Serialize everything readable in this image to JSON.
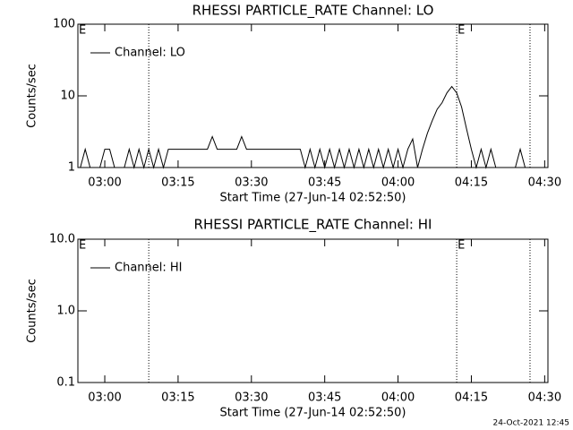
{
  "chart_data": [
    {
      "type": "line",
      "title": "RHESSI PARTICLE_RATE Channel: LO",
      "xlabel": "Start Time (27-Jun-14 02:52:50)",
      "ylabel": "Counts/sec",
      "log_y": true,
      "legend": "upper left",
      "xlim": [
        "02:54:30",
        "04:30:40"
      ],
      "xticks": [
        "03:00",
        "03:15",
        "03:30",
        "03:45",
        "04:00",
        "04:15",
        "04:30"
      ],
      "ylim": [
        1,
        100
      ],
      "yticks": [
        1,
        10,
        100
      ],
      "vlines": [
        "03:09",
        "04:12",
        "04:27"
      ],
      "markers": [
        {
          "x": "02:54:30",
          "label": "E"
        },
        {
          "x": "04:12",
          "label": "E"
        }
      ],
      "series": [
        {
          "name": "Channel: LO",
          "color": "#000000",
          "x": [
            "02:55",
            "02:56",
            "02:57",
            "02:58",
            "02:59",
            "03:00",
            "03:01",
            "03:02",
            "03:03",
            "03:04",
            "03:05",
            "03:06",
            "03:07",
            "03:08",
            "03:09",
            "03:10",
            "03:11",
            "03:12",
            "03:13",
            "03:14",
            "03:15",
            "03:16",
            "03:17",
            "03:18",
            "03:19",
            "03:20",
            "03:21",
            "03:22",
            "03:23",
            "03:24",
            "03:25",
            "03:26",
            "03:27",
            "03:28",
            "03:29",
            "03:30",
            "03:31",
            "03:32",
            "03:33",
            "03:34",
            "03:35",
            "03:36",
            "03:37",
            "03:38",
            "03:39",
            "03:40",
            "03:41",
            "03:42",
            "03:43",
            "03:44",
            "03:45",
            "03:46",
            "03:47",
            "03:48",
            "03:49",
            "03:50",
            "03:51",
            "03:52",
            "03:53",
            "03:54",
            "03:55",
            "03:56",
            "03:57",
            "03:58",
            "03:59",
            "04:00",
            "04:01",
            "04:02",
            "04:03",
            "04:04",
            "04:05",
            "04:06",
            "04:07",
            "04:08",
            "04:09",
            "04:10",
            "04:11",
            "04:12",
            "04:13",
            "04:14",
            "04:15",
            "04:16",
            "04:17",
            "04:18",
            "04:19",
            "04:20",
            "04:21",
            "04:22",
            "04:23",
            "04:24",
            "04:25",
            "04:26"
          ],
          "values": [
            1,
            1.8,
            1,
            1,
            1,
            1.8,
            1.8,
            1,
            1,
            1,
            1.8,
            1,
            1.8,
            1,
            1.8,
            1,
            1.8,
            1,
            1.8,
            1.8,
            1.8,
            1.8,
            1.8,
            1.8,
            1.8,
            1.8,
            1.8,
            2.7,
            1.8,
            1.8,
            1.8,
            1.8,
            1.8,
            2.7,
            1.8,
            1.8,
            1.8,
            1.8,
            1.8,
            1.8,
            1.8,
            1.8,
            1.8,
            1.8,
            1.8,
            1.8,
            1,
            1.8,
            1,
            1.8,
            1,
            1.8,
            1,
            1.8,
            1,
            1.8,
            1,
            1.8,
            1,
            1.8,
            1,
            1.8,
            1,
            1.8,
            1,
            1.8,
            1,
            1.8,
            2.5,
            1,
            1.8,
            3,
            4.5,
            6.5,
            8,
            11,
            13.5,
            11,
            7,
            3.5,
            1.8,
            1,
            1.8,
            1,
            1.8,
            1,
            1,
            1,
            1,
            1,
            1.8,
            1
          ]
        }
      ]
    },
    {
      "type": "line",
      "title": "RHESSI PARTICLE_RATE Channel: HI",
      "xlabel": "Start Time (27-Jun-14 02:52:50)",
      "ylabel": "Counts/sec",
      "log_y": true,
      "legend": "upper left",
      "xlim": [
        "02:54:30",
        "04:30:40"
      ],
      "xticks": [
        "03:00",
        "03:15",
        "03:30",
        "03:45",
        "04:00",
        "04:15",
        "04:30"
      ],
      "ylim": [
        0.1,
        10
      ],
      "yticks": [
        0.1,
        {
          "value": 1,
          "label": "1.0"
        },
        {
          "value": 10,
          "label": "10.0"
        }
      ],
      "vlines": [
        "03:09",
        "04:12",
        "04:27"
      ],
      "markers": [
        {
          "x": "02:54:30",
          "label": "E"
        },
        {
          "x": "04:12",
          "label": "E"
        }
      ],
      "series": [
        {
          "name": "Channel: HI",
          "color": "#000000",
          "x": [],
          "values": []
        }
      ]
    }
  ],
  "footer": "24-Oct-2021 12:45"
}
